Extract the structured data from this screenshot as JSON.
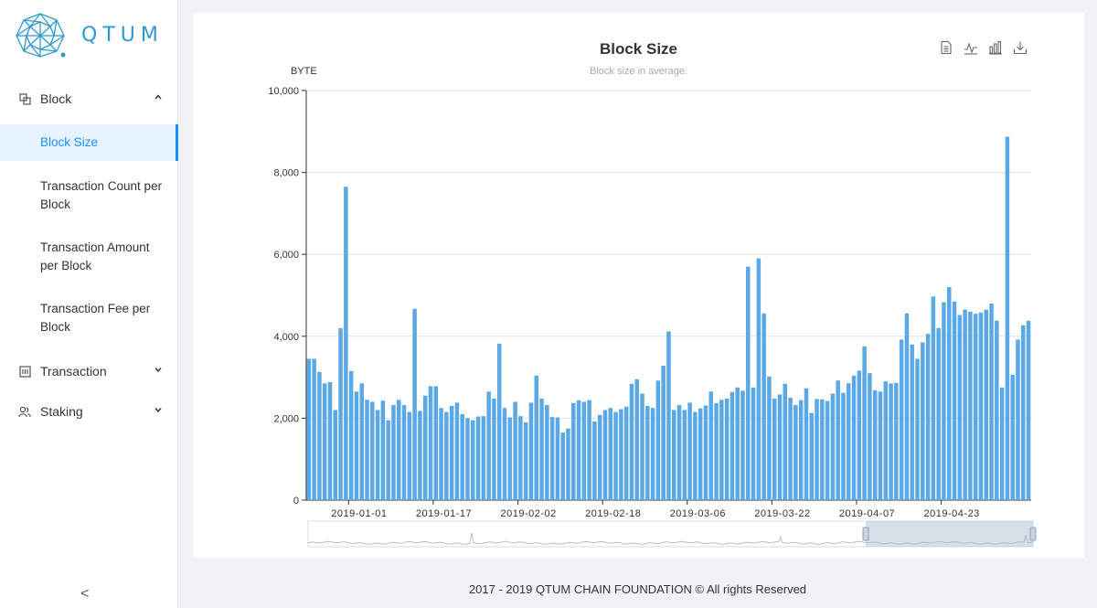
{
  "sidebar": {
    "logo_text": "QTUM",
    "groups": [
      {
        "label": "Block",
        "icon": "block-icon",
        "expanded": true
      },
      {
        "label": "Transaction",
        "icon": "transaction-icon",
        "expanded": false
      },
      {
        "label": "Staking",
        "icon": "staking-icon",
        "expanded": false
      }
    ],
    "block_items": [
      {
        "label": "Block Size",
        "active": true
      },
      {
        "label": "Transaction Count per Block",
        "active": false
      },
      {
        "label": "Transaction Amount per Block",
        "active": false
      },
      {
        "label": "Transaction Fee per Block",
        "active": false
      }
    ],
    "collapse_label": "<"
  },
  "toolbox": [
    "data-view-icon",
    "line-chart-icon",
    "bar-chart-icon",
    "download-icon"
  ],
  "colors": {
    "bar": "#5ba8e6",
    "accent": "#1890ff",
    "brand": "#2e9ad0"
  },
  "chart_data": {
    "type": "bar",
    "title": "Block Size",
    "subtitle": "Block size in average.",
    "ylabel": "BYTE",
    "ylim": [
      0,
      10000
    ],
    "yticks": [
      "0",
      "2,000",
      "4,000",
      "6,000",
      "8,000",
      "10,000"
    ],
    "xticks": [
      "2019-01-01",
      "2019-01-17",
      "2019-02-02",
      "2019-02-18",
      "2019-03-06",
      "2019-03-22",
      "2019-04-07",
      "2019-04-23"
    ],
    "start_date": "2018-12-24",
    "values": [
      3450,
      3450,
      3130,
      2850,
      2880,
      2200,
      4200,
      7650,
      3150,
      2650,
      2850,
      2450,
      2400,
      2200,
      2430,
      1950,
      2320,
      2450,
      2320,
      2150,
      4670,
      2180,
      2550,
      2780,
      2780,
      2250,
      2150,
      2300,
      2380,
      2100,
      2000,
      1950,
      2040,
      2050,
      2650,
      2480,
      3820,
      2250,
      2020,
      2400,
      2050,
      1900,
      2380,
      3040,
      2480,
      2320,
      2030,
      2020,
      1650,
      1750,
      2370,
      2440,
      2400,
      2440,
      1920,
      2080,
      2200,
      2250,
      2150,
      2220,
      2280,
      2840,
      2950,
      2600,
      2300,
      2250,
      2920,
      3280,
      4120,
      2200,
      2320,
      2200,
      2380,
      2150,
      2240,
      2310,
      2650,
      2370,
      2450,
      2480,
      2640,
      2750,
      2670,
      5700,
      2750,
      5900,
      4560,
      3020,
      2480,
      2580,
      2840,
      2500,
      2320,
      2440,
      2730,
      2130,
      2470,
      2460,
      2420,
      2600,
      2920,
      2620,
      2850,
      3040,
      3160,
      3750,
      3100,
      2680,
      2650,
      2900,
      2850,
      2860,
      3920,
      4560,
      3800,
      3450,
      3850,
      4060,
      4970,
      4200,
      4830,
      5200,
      4850,
      4520,
      4650,
      4600,
      4550,
      4580,
      4650,
      4800,
      4380,
      2750,
      8870,
      3060,
      3920,
      4270,
      4380
    ]
  },
  "footer": {
    "text": "2017 - 2019 QTUM CHAIN FOUNDATION © All rights Reserved"
  }
}
